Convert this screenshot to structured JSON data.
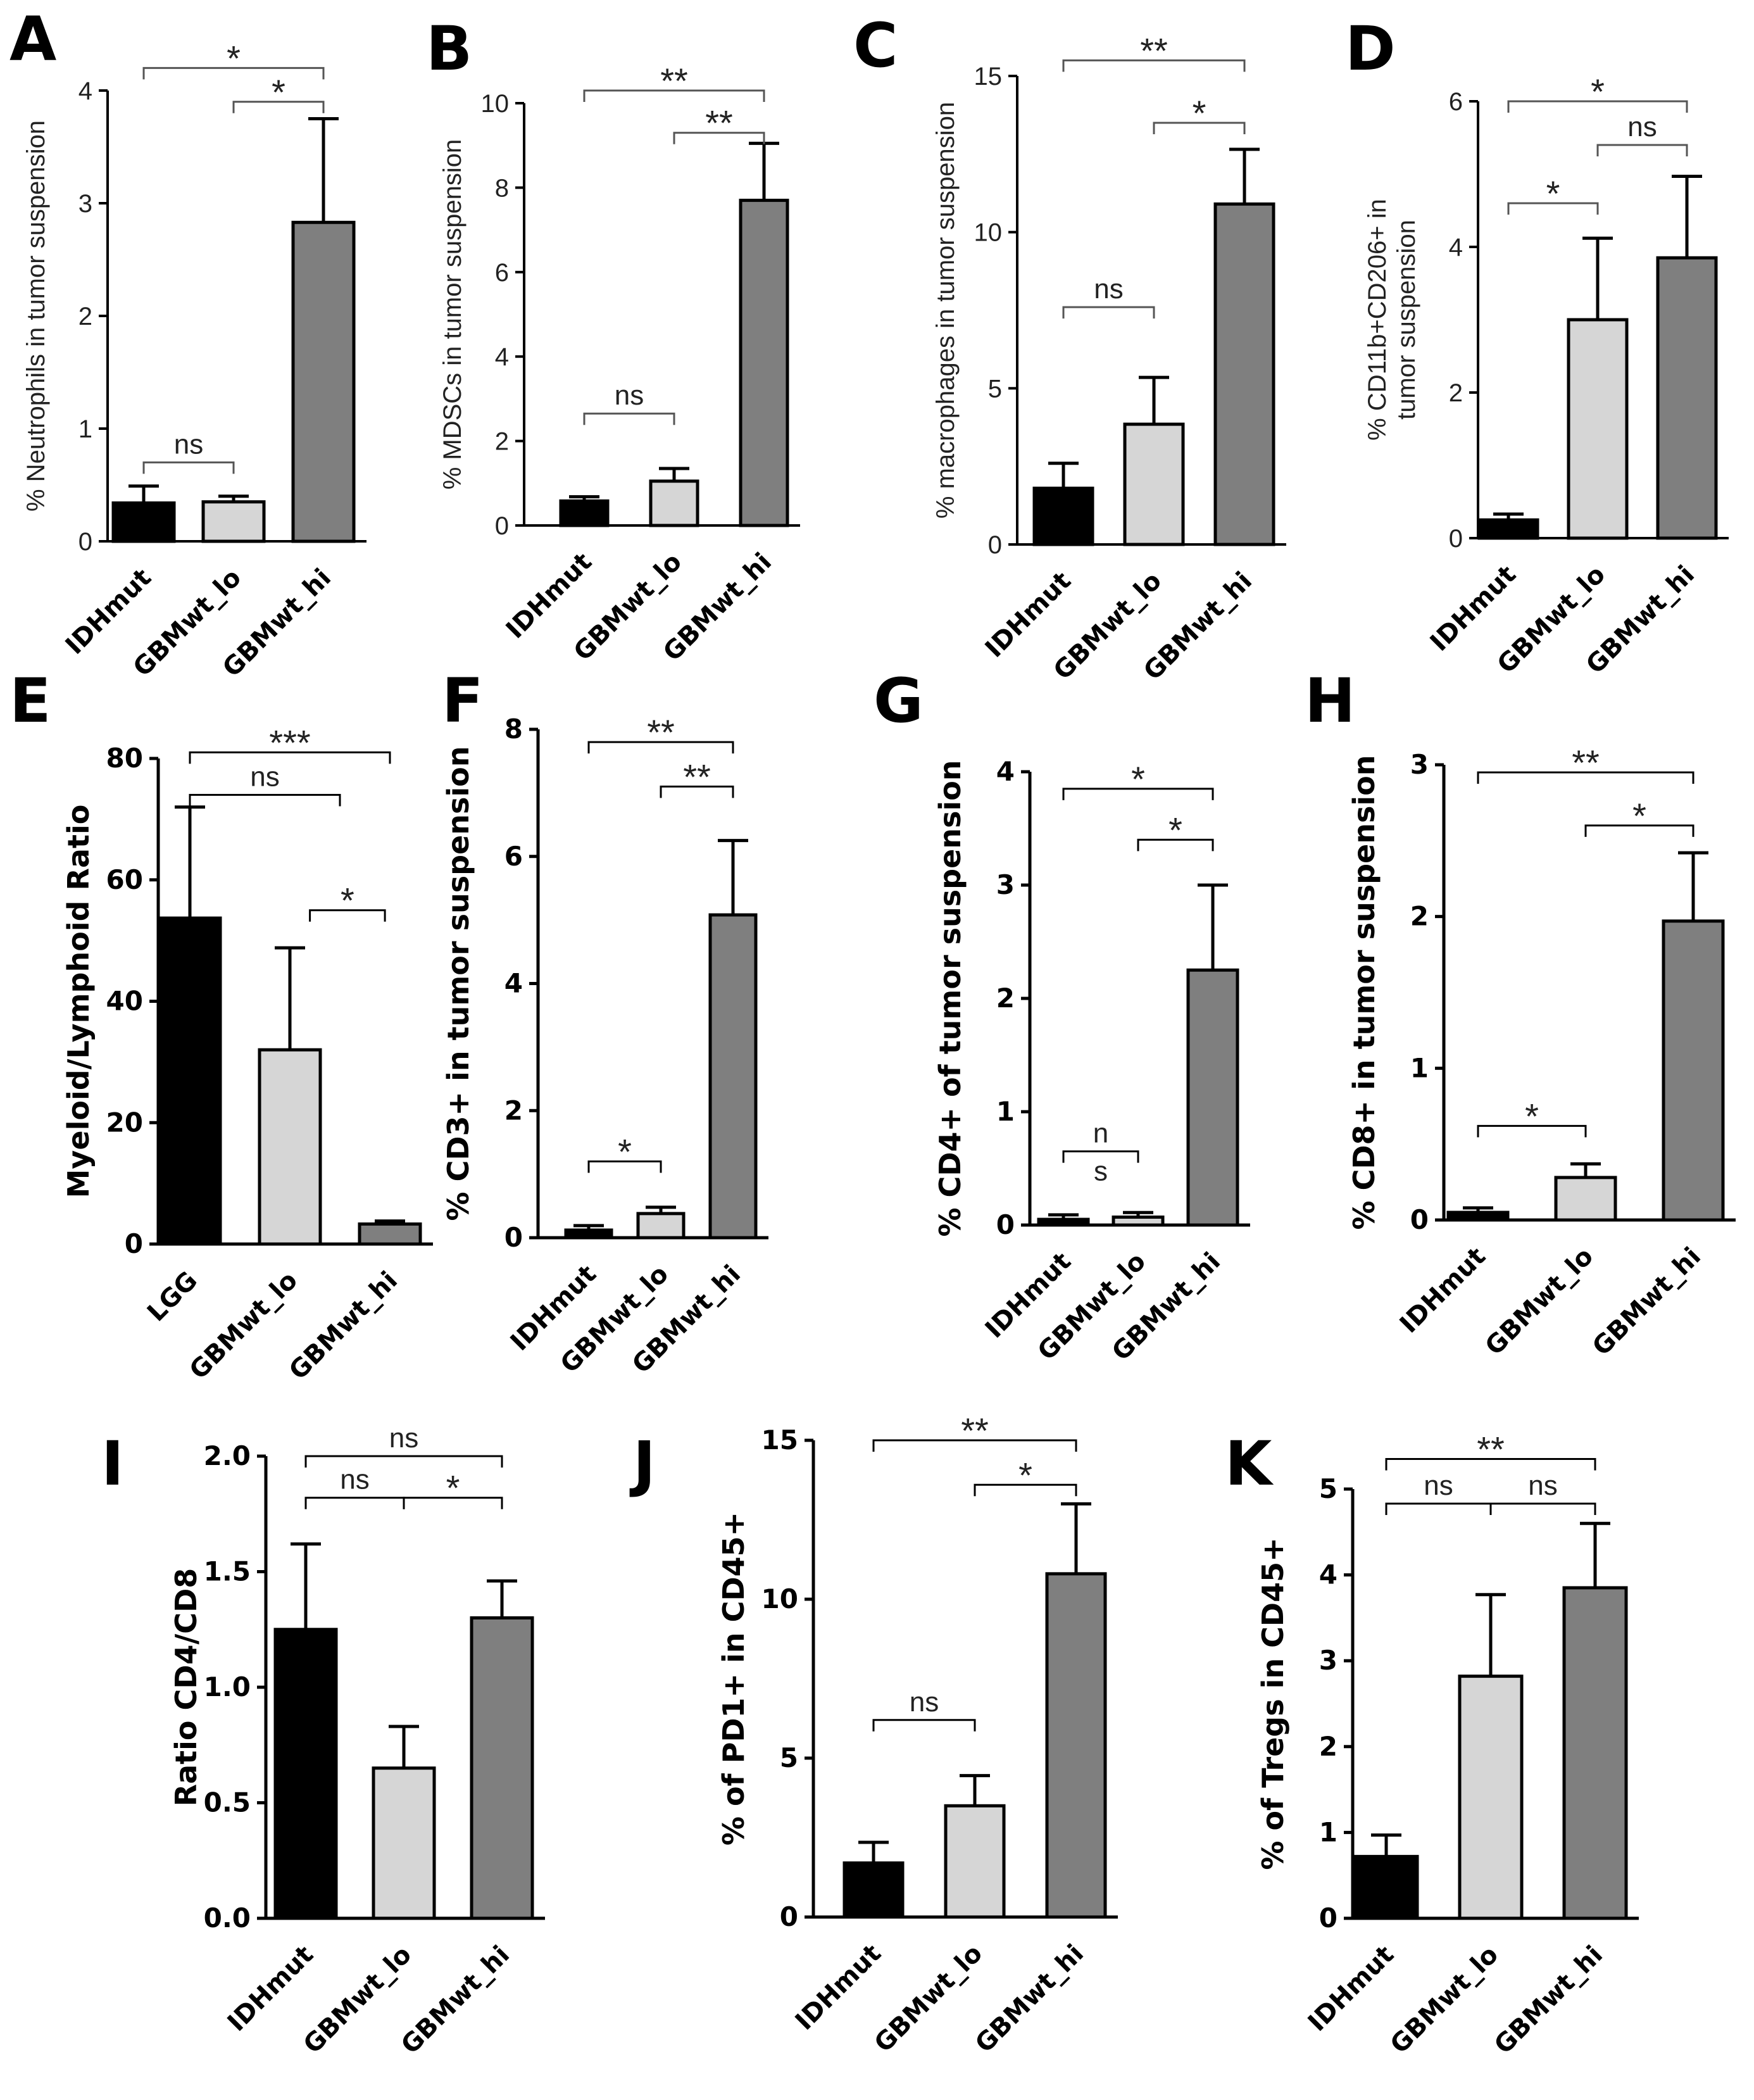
{
  "chart_data": [
    {
      "type": "bar",
      "letter": "A",
      "style": "light",
      "categories": [
        "IDHmut",
        "GBMwt_lo",
        "GBMwt_hi"
      ],
      "values": [
        0.34,
        0.35,
        2.83
      ],
      "errors": [
        0.15,
        0.05,
        0.92
      ],
      "ylabel": "% Neutrophils in tumor suspension",
      "ylim": [
        0,
        4
      ],
      "yticks": [
        0,
        1,
        2,
        3,
        4
      ],
      "tick_labels": [
        "0",
        "1",
        "2",
        "3",
        "4"
      ],
      "brackets": [
        {
          "from": 0,
          "to": 1,
          "label": "ns",
          "y": 0.7
        },
        {
          "from": 0,
          "to": 2,
          "label": "*",
          "y": 4.2
        },
        {
          "from": 1,
          "to": 2,
          "label": "*",
          "y": 3.9
        }
      ]
    },
    {
      "type": "bar",
      "letter": "B",
      "style": "light",
      "categories": [
        "IDHmut",
        "GBMwt_lo",
        "GBMwt_hi"
      ],
      "values": [
        0.58,
        1.05,
        7.7
      ],
      "errors": [
        0.1,
        0.3,
        1.35
      ],
      "ylabel": "% MDSCs in tumor suspension",
      "ylim": [
        0,
        10
      ],
      "yticks": [
        0,
        2,
        4,
        6,
        8,
        10
      ],
      "tick_labels": [
        "0",
        "2",
        "4",
        "6",
        "8",
        "10"
      ],
      "brackets": [
        {
          "from": 0,
          "to": 1,
          "label": "ns",
          "y": 2.65
        },
        {
          "from": 0,
          "to": 2,
          "label": "**",
          "y": 10.3
        },
        {
          "from": 1,
          "to": 2,
          "label": "**",
          "y": 9.3
        }
      ]
    },
    {
      "type": "bar",
      "letter": "C",
      "style": "light",
      "categories": [
        "IDHmut",
        "GBMwt_lo",
        "GBMwt_hi"
      ],
      "values": [
        1.8,
        3.85,
        10.9
      ],
      "errors": [
        0.8,
        1.5,
        1.75
      ],
      "ylabel": "% macrophages in tumor suspension",
      "ylim": [
        0,
        15
      ],
      "yticks": [
        0,
        5,
        10,
        15
      ],
      "tick_labels": [
        "0",
        "5",
        "10",
        "15"
      ],
      "brackets": [
        {
          "from": 0,
          "to": 1,
          "label": "ns",
          "y": 7.6
        },
        {
          "from": 0,
          "to": 2,
          "label": "**",
          "y": 15.5
        },
        {
          "from": 1,
          "to": 2,
          "label": "*",
          "y": 13.5
        }
      ]
    },
    {
      "type": "bar",
      "letter": "D",
      "style": "light",
      "categories": [
        "IDHmut",
        "GBMwt_lo",
        "GBMwt_hi"
      ],
      "values": [
        0.25,
        3.0,
        3.85
      ],
      "errors": [
        0.08,
        1.12,
        1.12
      ],
      "ylabel": "% CD11b+CD206+ in tumor suspension",
      "ylabel_lines": [
        "% CD11b+CD206+ in",
        "tumor suspension"
      ],
      "ylim": [
        0,
        6
      ],
      "yticks": [
        0,
        2,
        4,
        6
      ],
      "tick_labels": [
        "0",
        "2",
        "4",
        "6"
      ],
      "brackets": [
        {
          "from": 0,
          "to": 1,
          "label": "*",
          "y": 4.6
        },
        {
          "from": 0,
          "to": 2,
          "label": "*",
          "y": 6.0
        },
        {
          "from": 1,
          "to": 2,
          "label": "ns",
          "y": 5.4
        }
      ]
    },
    {
      "type": "bar",
      "letter": "E",
      "style": "bold",
      "categories": [
        "LGG",
        "GBMwt_lo",
        "GBMwt_hi"
      ],
      "values": [
        53.7,
        32.0,
        3.3
      ],
      "errors": [
        18.3,
        16.8,
        0.5
      ],
      "ylabel": "Myeloid/Lymphoid Ratio",
      "ylim": [
        0,
        80
      ],
      "yticks": [
        0,
        20,
        40,
        60,
        80
      ],
      "tick_labels": [
        "0",
        "20",
        "40",
        "60",
        "80"
      ],
      "brackets": [
        {
          "from": 0,
          "to": 2,
          "label": "***",
          "y": 81
        },
        {
          "from": 0,
          "to": 1.5,
          "label": "ns",
          "y": 74
        },
        {
          "from": 1.2,
          "to": 1.95,
          "label": "*",
          "y": 55
        }
      ]
    },
    {
      "type": "bar",
      "letter": "F",
      "style": "bold",
      "categories": [
        "IDHmut",
        "GBMwt_lo",
        "GBMwt_hi"
      ],
      "values": [
        0.12,
        0.38,
        5.08
      ],
      "errors": [
        0.07,
        0.1,
        1.17
      ],
      "ylabel": "% CD3+ in tumor suspension",
      "ylim": [
        0,
        8
      ],
      "yticks": [
        0,
        2,
        4,
        6,
        8
      ],
      "tick_labels": [
        "0",
        "2",
        "4",
        "6",
        "8"
      ],
      "brackets": [
        {
          "from": 0,
          "to": 1,
          "label": "*",
          "y": 1.2
        },
        {
          "from": 0,
          "to": 2,
          "label": "**",
          "y": 7.8
        },
        {
          "from": 1,
          "to": 2,
          "label": "**",
          "y": 7.1
        }
      ]
    },
    {
      "type": "bar",
      "letter": "G",
      "style": "bold",
      "categories": [
        "IDHmut",
        "GBMwt_lo",
        "GBMwt_hi"
      ],
      "values": [
        0.05,
        0.07,
        2.25
      ],
      "errors": [
        0.04,
        0.04,
        0.75
      ],
      "ylabel": "% CD4+ of tumor suspension",
      "ylim": [
        0,
        4
      ],
      "yticks": [
        0,
        1,
        2,
        3,
        4
      ],
      "tick_labels": [
        "0",
        "1",
        "2",
        "3",
        "4"
      ],
      "brackets": [
        {
          "from": 0,
          "to": 1,
          "label": "ns",
          "label_lines": [
            "n",
            "s"
          ],
          "y": 0.65
        },
        {
          "from": 0,
          "to": 2,
          "label": "*",
          "y": 3.85
        },
        {
          "from": 1,
          "to": 2,
          "label": "*",
          "y": 3.4
        }
      ]
    },
    {
      "type": "bar",
      "letter": "H",
      "style": "bold",
      "categories": [
        "IDHmut",
        "GBMwt_lo",
        "GBMwt_hi"
      ],
      "values": [
        0.05,
        0.28,
        1.97
      ],
      "errors": [
        0.03,
        0.09,
        0.45
      ],
      "ylabel": "% CD8+ in tumor suspension",
      "ylim": [
        0,
        3
      ],
      "yticks": [
        0,
        1,
        2,
        3
      ],
      "tick_labels": [
        "0",
        "1",
        "2",
        "3"
      ],
      "brackets": [
        {
          "from": 0,
          "to": 1,
          "label": "*",
          "y": 0.62
        },
        {
          "from": 0,
          "to": 2,
          "label": "**",
          "y": 2.95
        },
        {
          "from": 1,
          "to": 2,
          "label": "*",
          "y": 2.6
        }
      ]
    },
    {
      "type": "bar",
      "letter": "I",
      "style": "bold",
      "categories": [
        "IDHmut",
        "GBMwt_lo",
        "GBMwt_hi"
      ],
      "values": [
        1.25,
        0.65,
        1.3
      ],
      "errors": [
        0.37,
        0.18,
        0.16
      ],
      "ylabel": "Ratio CD4/CD8",
      "ylim": [
        0,
        2
      ],
      "yticks": [
        0,
        0.5,
        1,
        1.5,
        2
      ],
      "tick_labels": [
        "0.0",
        "0.5",
        "1.0",
        "1.5",
        "2.0"
      ],
      "brackets": [
        {
          "from": 0,
          "to": 2,
          "label": "ns",
          "y": 2.0
        },
        {
          "from": 0,
          "to": 1,
          "label": "ns",
          "y": 1.82
        },
        {
          "from": 1,
          "to": 2,
          "label": "*",
          "y": 1.82
        }
      ]
    },
    {
      "type": "bar",
      "letter": "J",
      "style": "bold",
      "categories": [
        "IDHmut",
        "GBMwt_lo",
        "GBMwt_hi"
      ],
      "values": [
        1.7,
        3.5,
        10.8
      ],
      "errors": [
        0.65,
        0.95,
        2.2
      ],
      "ylabel": "% of PD1+ in CD45+",
      "ylim": [
        0,
        15
      ],
      "yticks": [
        0,
        5,
        10,
        15
      ],
      "tick_labels": [
        "0",
        "5",
        "10",
        "15"
      ],
      "brackets": [
        {
          "from": 0,
          "to": 1,
          "label": "ns",
          "y": 6.2
        },
        {
          "from": 0,
          "to": 2,
          "label": "**",
          "y": 15.0
        },
        {
          "from": 1,
          "to": 2,
          "label": "*",
          "y": 13.6
        }
      ]
    },
    {
      "type": "bar",
      "letter": "K",
      "style": "bold",
      "categories": [
        "IDHmut",
        "GBMwt_lo",
        "GBMwt_hi"
      ],
      "values": [
        0.72,
        2.82,
        3.85
      ],
      "errors": [
        0.25,
        0.95,
        0.75
      ],
      "ylabel": "% of Tregs in CD45+",
      "ylim": [
        0,
        5
      ],
      "yticks": [
        0,
        1,
        2,
        3,
        4,
        5
      ],
      "tick_labels": [
        "0",
        "1",
        "2",
        "3",
        "4",
        "5"
      ],
      "brackets": [
        {
          "from": 0,
          "to": 2,
          "label": "**",
          "y": 5.35
        },
        {
          "from": 0,
          "to": 1,
          "label": "ns",
          "y": 4.83
        },
        {
          "from": 1,
          "to": 2,
          "label": "ns",
          "y": 4.83
        }
      ]
    }
  ],
  "colors": {
    "bar_fills": [
      "#000000",
      "#d6d6d6",
      "#7f7f7f"
    ],
    "stroke": "#000000",
    "bracket_light": "#555555"
  }
}
